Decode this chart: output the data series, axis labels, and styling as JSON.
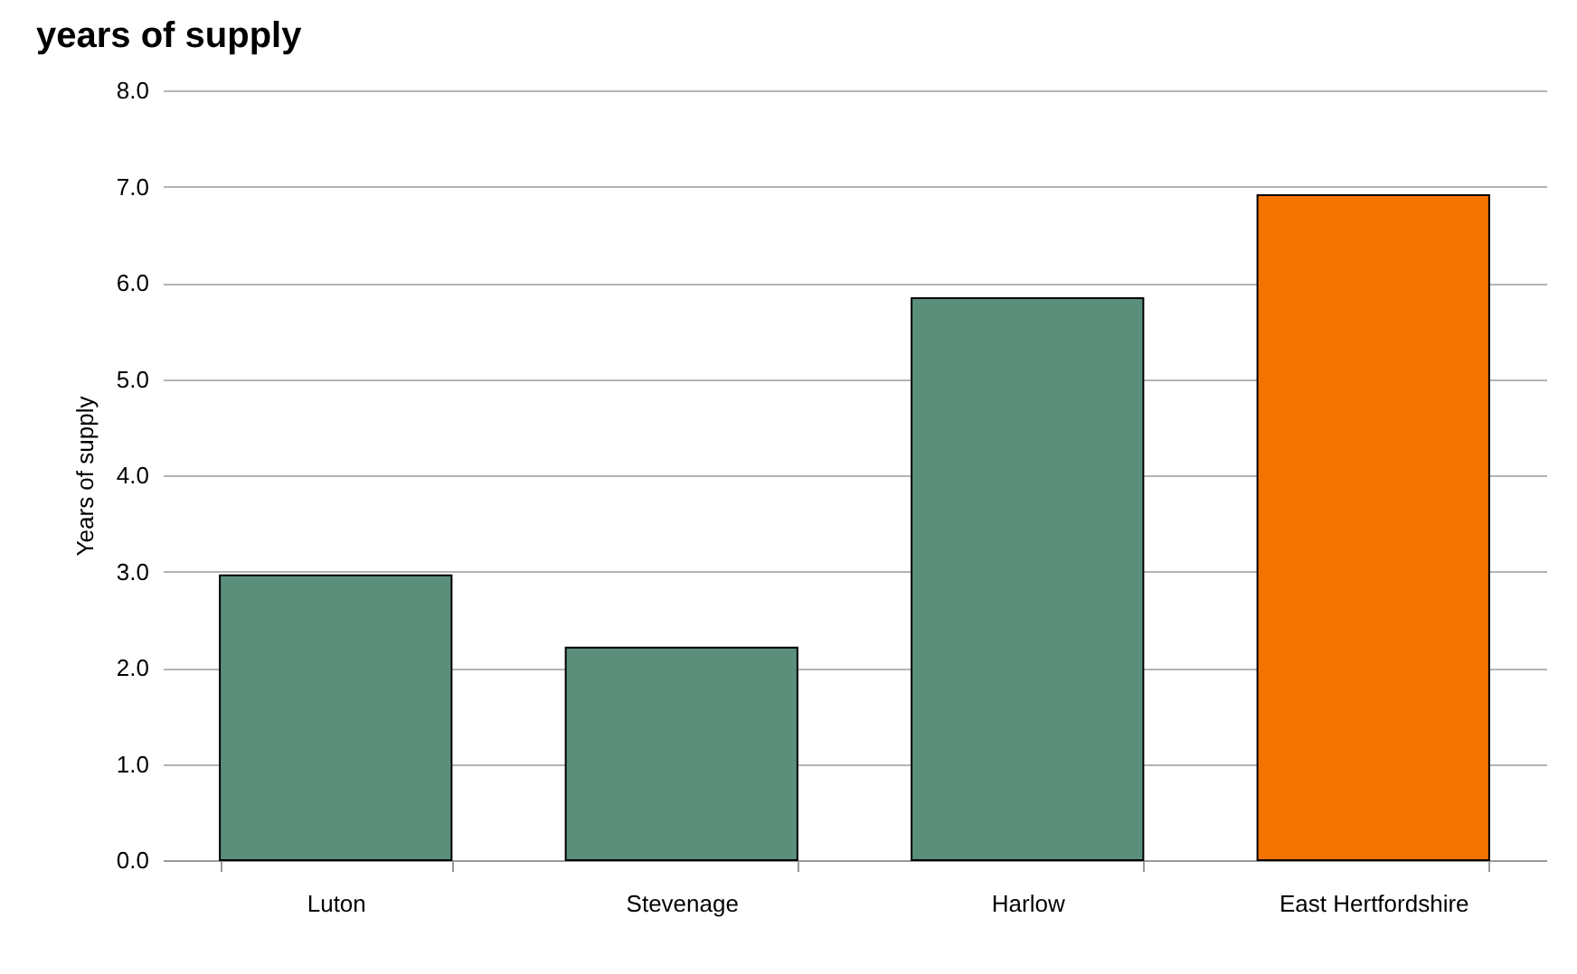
{
  "chart_data": {
    "type": "bar",
    "title": "years of supply",
    "ylabel": "Years of supply",
    "categories": [
      "Luton",
      "Stevenage",
      "Harlow",
      "East Hertfordshire"
    ],
    "values": [
      2.96,
      2.21,
      5.84,
      6.91
    ],
    "colors": [
      "#5b8f7c",
      "#5b8f7c",
      "#5b8f7c",
      "#f57300"
    ],
    "ylim": [
      0,
      8
    ],
    "yticks": [
      {
        "value": 0,
        "label": "0.0"
      },
      {
        "value": 1,
        "label": "1.0"
      },
      {
        "value": 2,
        "label": "2.0"
      },
      {
        "value": 3,
        "label": "3.0"
      },
      {
        "value": 4,
        "label": "4.0"
      },
      {
        "value": 5,
        "label": "5.0"
      },
      {
        "value": 6,
        "label": "6.0"
      },
      {
        "value": 7,
        "label": "7.0"
      },
      {
        "value": 8,
        "label": "8.0"
      }
    ],
    "grid": "y"
  }
}
